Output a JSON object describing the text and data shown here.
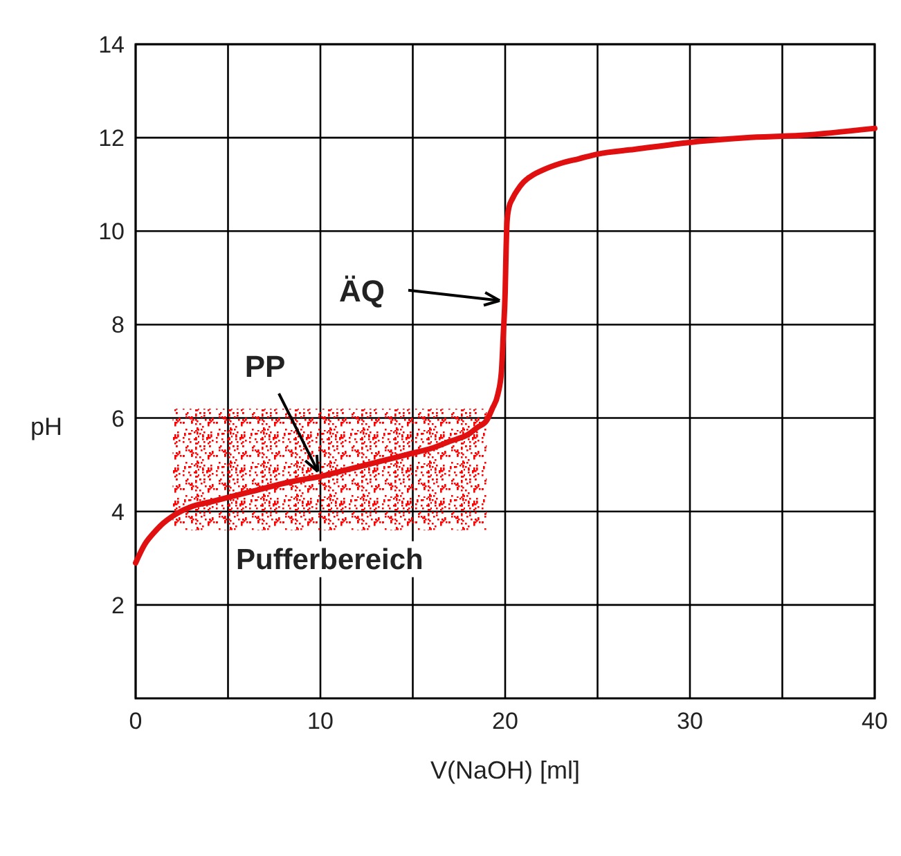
{
  "chart_data": {
    "type": "line",
    "xlabel": "V(NaOH) [ml]",
    "ylabel": "pH",
    "x": [
      0,
      0.5,
      1,
      1.5,
      2,
      3,
      4,
      5,
      6,
      7,
      8,
      9,
      10,
      11,
      12,
      13,
      14,
      15,
      16,
      17,
      18,
      18.5,
      19,
      19.3,
      19.6,
      19.8,
      19.9,
      20,
      20.05,
      20.1,
      20.2,
      20.4,
      20.7,
      21,
      21.5,
      22,
      23,
      24,
      25,
      27,
      30,
      33,
      36,
      40
    ],
    "series": [
      {
        "color": "#e01010",
        "values": [
          2.9,
          3.3,
          3.55,
          3.75,
          3.9,
          4.1,
          4.2,
          4.3,
          4.4,
          4.5,
          4.6,
          4.68,
          4.75,
          4.85,
          4.95,
          5.05,
          5.15,
          5.25,
          5.35,
          5.5,
          5.65,
          5.8,
          5.95,
          6.2,
          6.5,
          7.0,
          7.8,
          8.7,
          9.6,
          10.2,
          10.5,
          10.7,
          10.9,
          11.05,
          11.2,
          11.3,
          11.45,
          11.55,
          11.65,
          11.75,
          11.9,
          12.0,
          12.05,
          12.2
        ]
      }
    ],
    "xlim": [
      0,
      40
    ],
    "xticks": [
      0,
      10,
      20,
      30,
      40
    ],
    "ylim": [
      0,
      14
    ],
    "yticks": [
      2,
      4,
      6,
      8,
      10,
      12,
      14
    ],
    "grid": true,
    "marker": "none",
    "line_style": "solid",
    "bands": [
      {
        "axis": "y",
        "from": 3.6,
        "to": 6.2,
        "label": "Pufferbereich",
        "color": "#ff0000"
      }
    ],
    "annotations": [
      {
        "text": "PP",
        "x": 10,
        "y": 4.75
      },
      {
        "text": "ÄQ",
        "x": 20,
        "y": 8.5
      }
    ]
  }
}
